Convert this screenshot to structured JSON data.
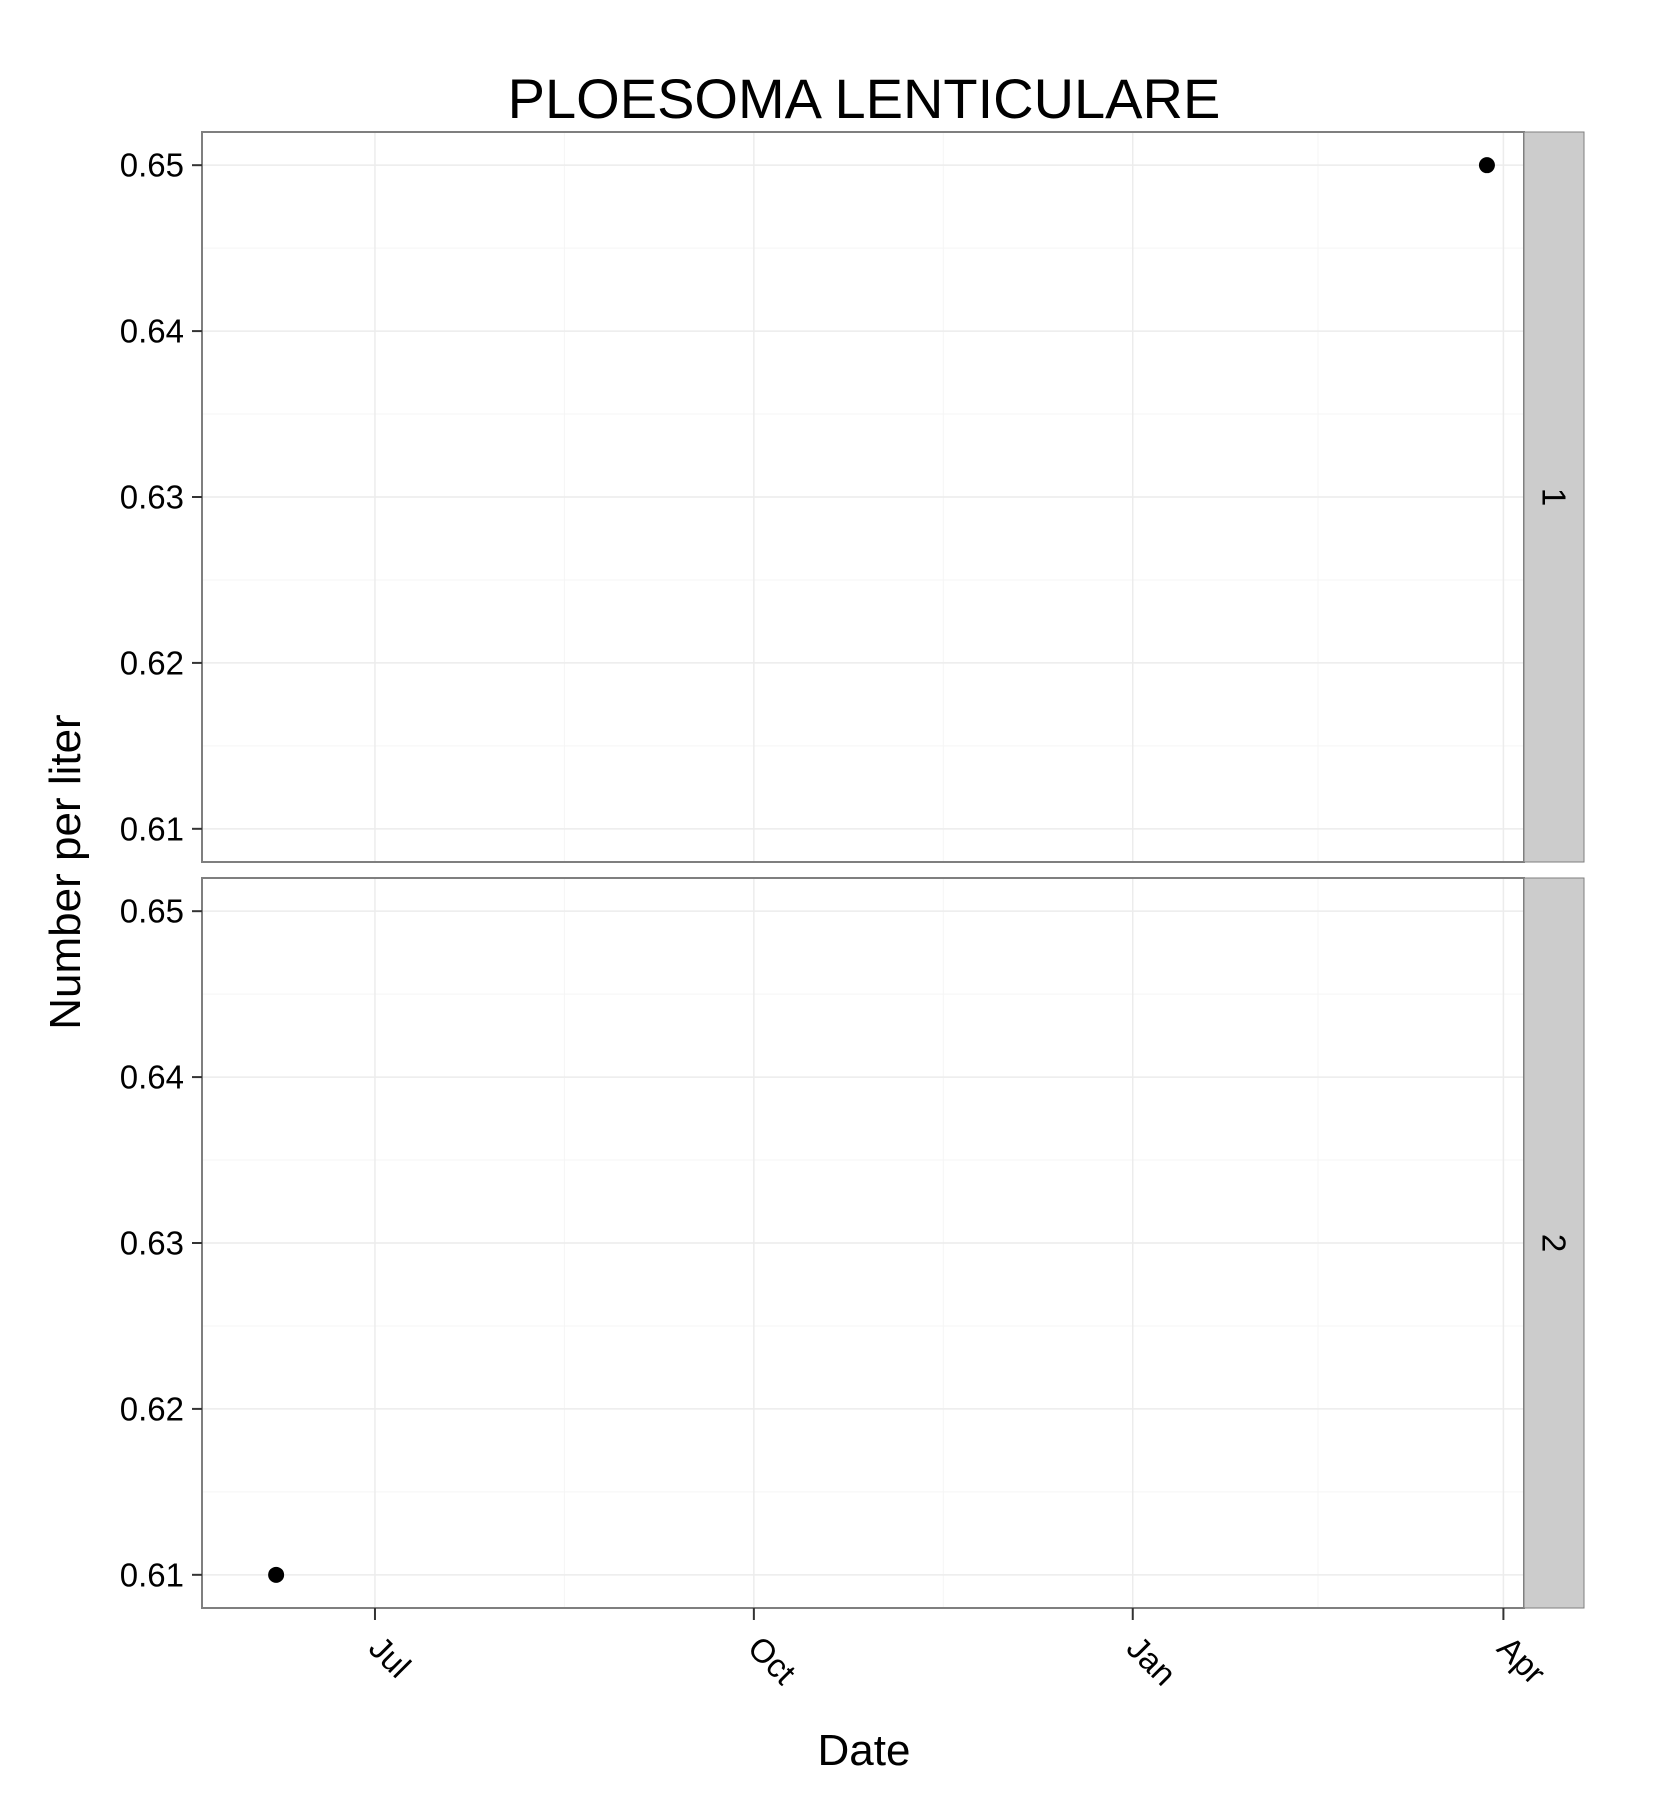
{
  "chart_data": {
    "type": "scatter",
    "title": "PLOESOMA LENTICULARE",
    "xlabel": "Date",
    "ylabel": "Number per liter",
    "x_ticks": [
      {
        "label": "Jul",
        "date": "2000-07-01"
      },
      {
        "label": "Oct",
        "date": "2000-10-01"
      },
      {
        "label": "Jan",
        "date": "2001-01-01"
      },
      {
        "label": "Apr",
        "date": "2001-04-01"
      }
    ],
    "xlim": [
      "2000-05-20",
      "2001-04-06"
    ],
    "y_ticks": [
      0.61,
      0.62,
      0.63,
      0.64,
      0.65
    ],
    "ylim": [
      0.608,
      0.652
    ],
    "grid": true,
    "facets": [
      {
        "label": "1",
        "points": [
          {
            "x": "2001-03-28",
            "y": 0.65
          }
        ]
      },
      {
        "label": "2",
        "points": [
          {
            "x": "2000-06-07",
            "y": 0.61
          }
        ]
      }
    ]
  }
}
